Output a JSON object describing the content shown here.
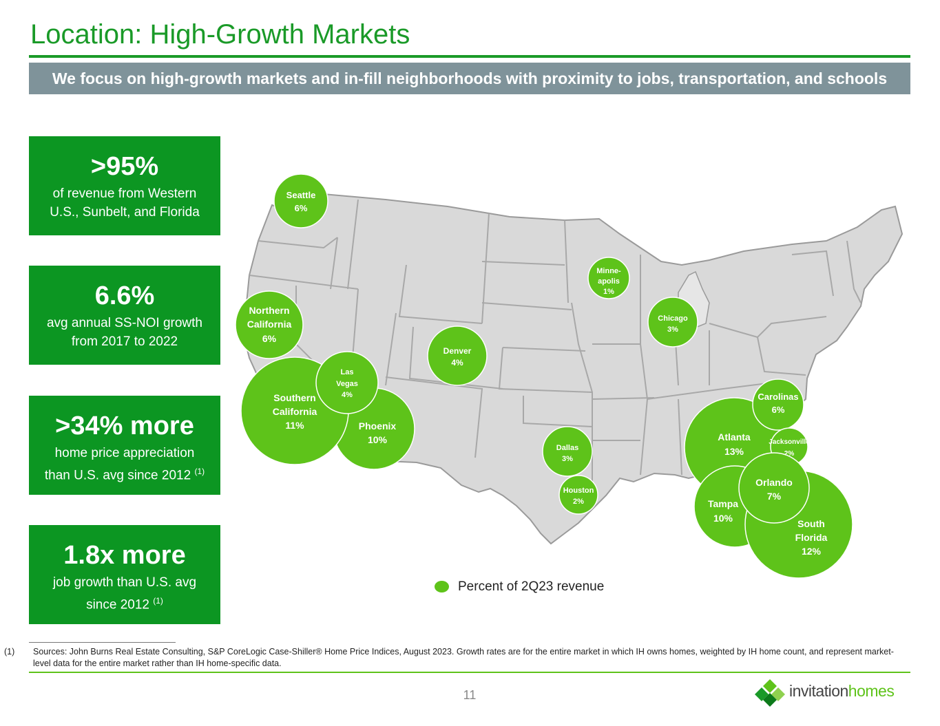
{
  "title": "Location: High-Growth Markets",
  "banner": "We focus on high-growth markets and in-fill neighborhoods with proximity to jobs, transportation, and schools",
  "stats": [
    {
      "big": ">95%",
      "line1": "of revenue from Western",
      "line2": "U.S., Sunbelt, and Florida",
      "sup": ""
    },
    {
      "big": "6.6%",
      "line1": "avg annual SS-NOI growth",
      "line2": "from 2017 to 2022",
      "sup": ""
    },
    {
      "big": ">34% more",
      "line1": "home price appreciation",
      "line2": "than U.S. avg since 2012",
      "sup": "(1)"
    },
    {
      "big": "1.8x more",
      "line1": "job growth than U.S. avg",
      "line2": "since 2012",
      "sup": "(1)"
    }
  ],
  "markets": {
    "seattle": {
      "name": "Seattle",
      "pct": "6%"
    },
    "norcal": {
      "name1": "Northern",
      "name2": "California",
      "pct": "6%"
    },
    "socal": {
      "name1": "Southern",
      "name2": "California",
      "pct": "11%"
    },
    "lasvegas": {
      "name1": "Las",
      "name2": "Vegas",
      "pct": "4%"
    },
    "phoenix": {
      "name": "Phoenix",
      "pct": "10%"
    },
    "denver": {
      "name": "Denver",
      "pct": "4%"
    },
    "minneapolis": {
      "name1": "Minne-",
      "name2": "apolis",
      "pct": "1%"
    },
    "chicago": {
      "name": "Chicago",
      "pct": "3%"
    },
    "dallas": {
      "name": "Dallas",
      "pct": "3%"
    },
    "houston": {
      "name": "Houston",
      "pct": "2%"
    },
    "atlanta": {
      "name": "Atlanta",
      "pct": "13%"
    },
    "carolinas": {
      "name": "Carolinas",
      "pct": "6%"
    },
    "jacksonville": {
      "name": "Jacksonville",
      "pct": "2%"
    },
    "orlando": {
      "name": "Orlando",
      "pct": "7%"
    },
    "tampa": {
      "name": "Tampa",
      "pct": "10%"
    },
    "southflorida": {
      "name1": "South",
      "name2": "Florida",
      "pct": "12%"
    }
  },
  "legend": "Percent of 2Q23 revenue",
  "footnote": {
    "num": "(1)",
    "text": "Sources: John Burns Real Estate Consulting, S&P CoreLogic Case-Shiller® Home Price Indices, August 2023.  Growth rates are for the entire market in which IH owns homes, weighted by IH home count, and represent market-level data for the entire market rather than IH home-specific data."
  },
  "page_number": "11",
  "logo": {
    "part1": "invitation",
    "part2": "homes"
  },
  "colors": {
    "green_dark": "#0c9622",
    "green_title": "#1a9a28",
    "bubble": "#5ec31a",
    "banner": "#7f939a",
    "map_fill": "#d9d9d9",
    "map_stroke": "#9a9a9a"
  }
}
